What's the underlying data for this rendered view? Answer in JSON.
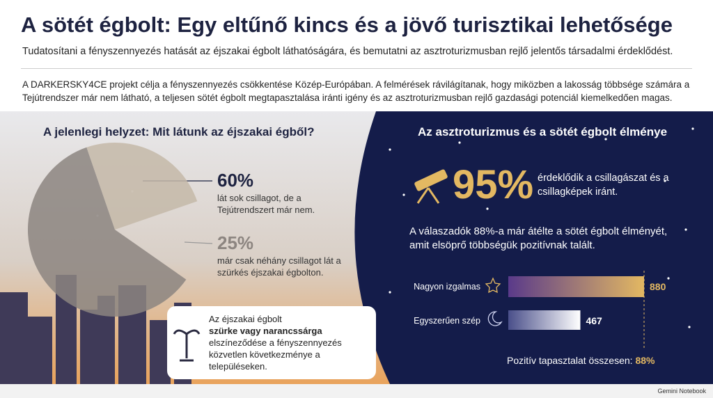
{
  "header": {
    "title": "A sötét égbolt: Egy eltűnő kincs és a jövő turisztikai lehetősége",
    "subtitle": "Tudatosítani a fényszennyezés hatását az éjszakai égbolt láthatóságára, és bemutatni az asztroturizmusban rejlő jelentős társadalmi érdeklődést."
  },
  "intro": "A DARKERSKY4CE projekt célja a fényszennyezés csökkentése Közép-Európában. A felmérések rávilágítanak, hogy miközben a lakosság többsége számára a Tejútrendszer már nem látható, a teljesen sötét égbolt megtapasztalása iránti igény és az asztroturizmusban rejlő gazdasági potenciál kiemelkedően magas.",
  "left": {
    "heading": "A jelenlegi helyzet: Mit látunk az éjszakai égből?",
    "callout": {
      "line1": "Az éjszakai égbolt",
      "emphasis": "szürke vagy narancssárga",
      "rest": "elszíneződése a fényszennyezés közvetlen következménye a településeken."
    }
  },
  "right": {
    "heading": "Az asztroturizmus és a sötét égbolt élménye",
    "stat": {
      "value": "95%",
      "text": "érdeklődik a csillagászat és a csillagképek iránt."
    },
    "summary": {
      "label": "Pozitív tapasztalat összesen:",
      "value": "88%"
    }
  },
  "chart_data": [
    {
      "type": "pie",
      "categories": [
        "lát sok csillagot, de a Tejútrendszert már nem.",
        "már csak néhány csillagot lát a szürkés éjszakai égbolton."
      ],
      "values": [
        60,
        25
      ],
      "value_labels": [
        "60%",
        "25%"
      ],
      "colors": [
        "#8c8580",
        "#c4b8a8"
      ]
    },
    {
      "type": "bar",
      "title": "A válaszadók 88%-a már átélte a sötét égbolt élményét, amit elsöprő többségük pozitívnak talált.",
      "categories": [
        "Nagyon izgalmas",
        "Egyszerűen szép"
      ],
      "values": [
        880,
        467
      ],
      "colors": [
        "#e3b862",
        "#ffffff"
      ]
    }
  ],
  "footer": "Gemini Notebook"
}
